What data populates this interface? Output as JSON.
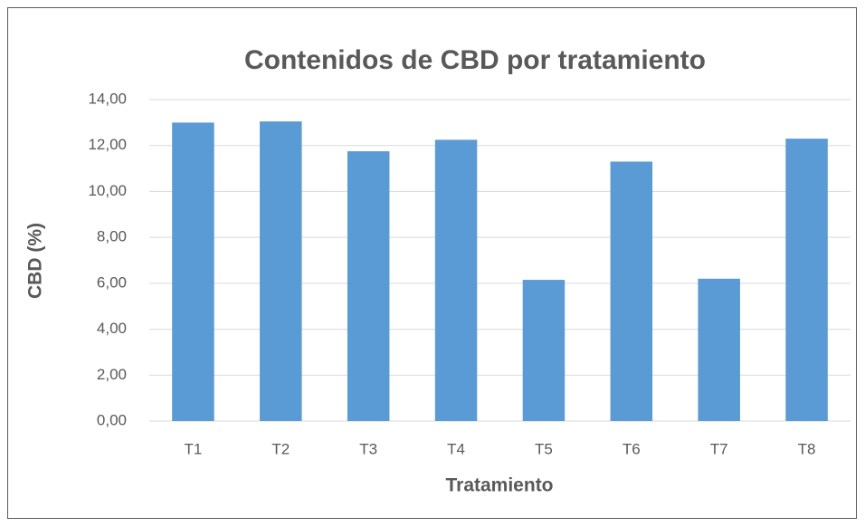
{
  "chart_data": {
    "type": "bar",
    "title": "Contenidos de CBD por tratamiento",
    "x_label": "Tratamiento",
    "y_label": "CBD (%)",
    "categories": [
      "T1",
      "T2",
      "T3",
      "T4",
      "T5",
      "T6",
      "T7",
      "T8"
    ],
    "values": [
      13.0,
      13.05,
      11.75,
      12.25,
      6.15,
      11.3,
      6.2,
      12.3
    ],
    "color": "#5b9bd5",
    "ylim": [
      0,
      14
    ],
    "yticks": [
      {
        "value": 0,
        "label": "0,00"
      },
      {
        "value": 2,
        "label": "2,00"
      },
      {
        "value": 4,
        "label": "4,00"
      },
      {
        "value": 6,
        "label": "6,00"
      },
      {
        "value": 8,
        "label": "8,00"
      },
      {
        "value": 10,
        "label": "10,00"
      },
      {
        "value": 12,
        "label": "12,00"
      },
      {
        "value": 14,
        "label": "14,00"
      }
    ],
    "grid": true
  }
}
